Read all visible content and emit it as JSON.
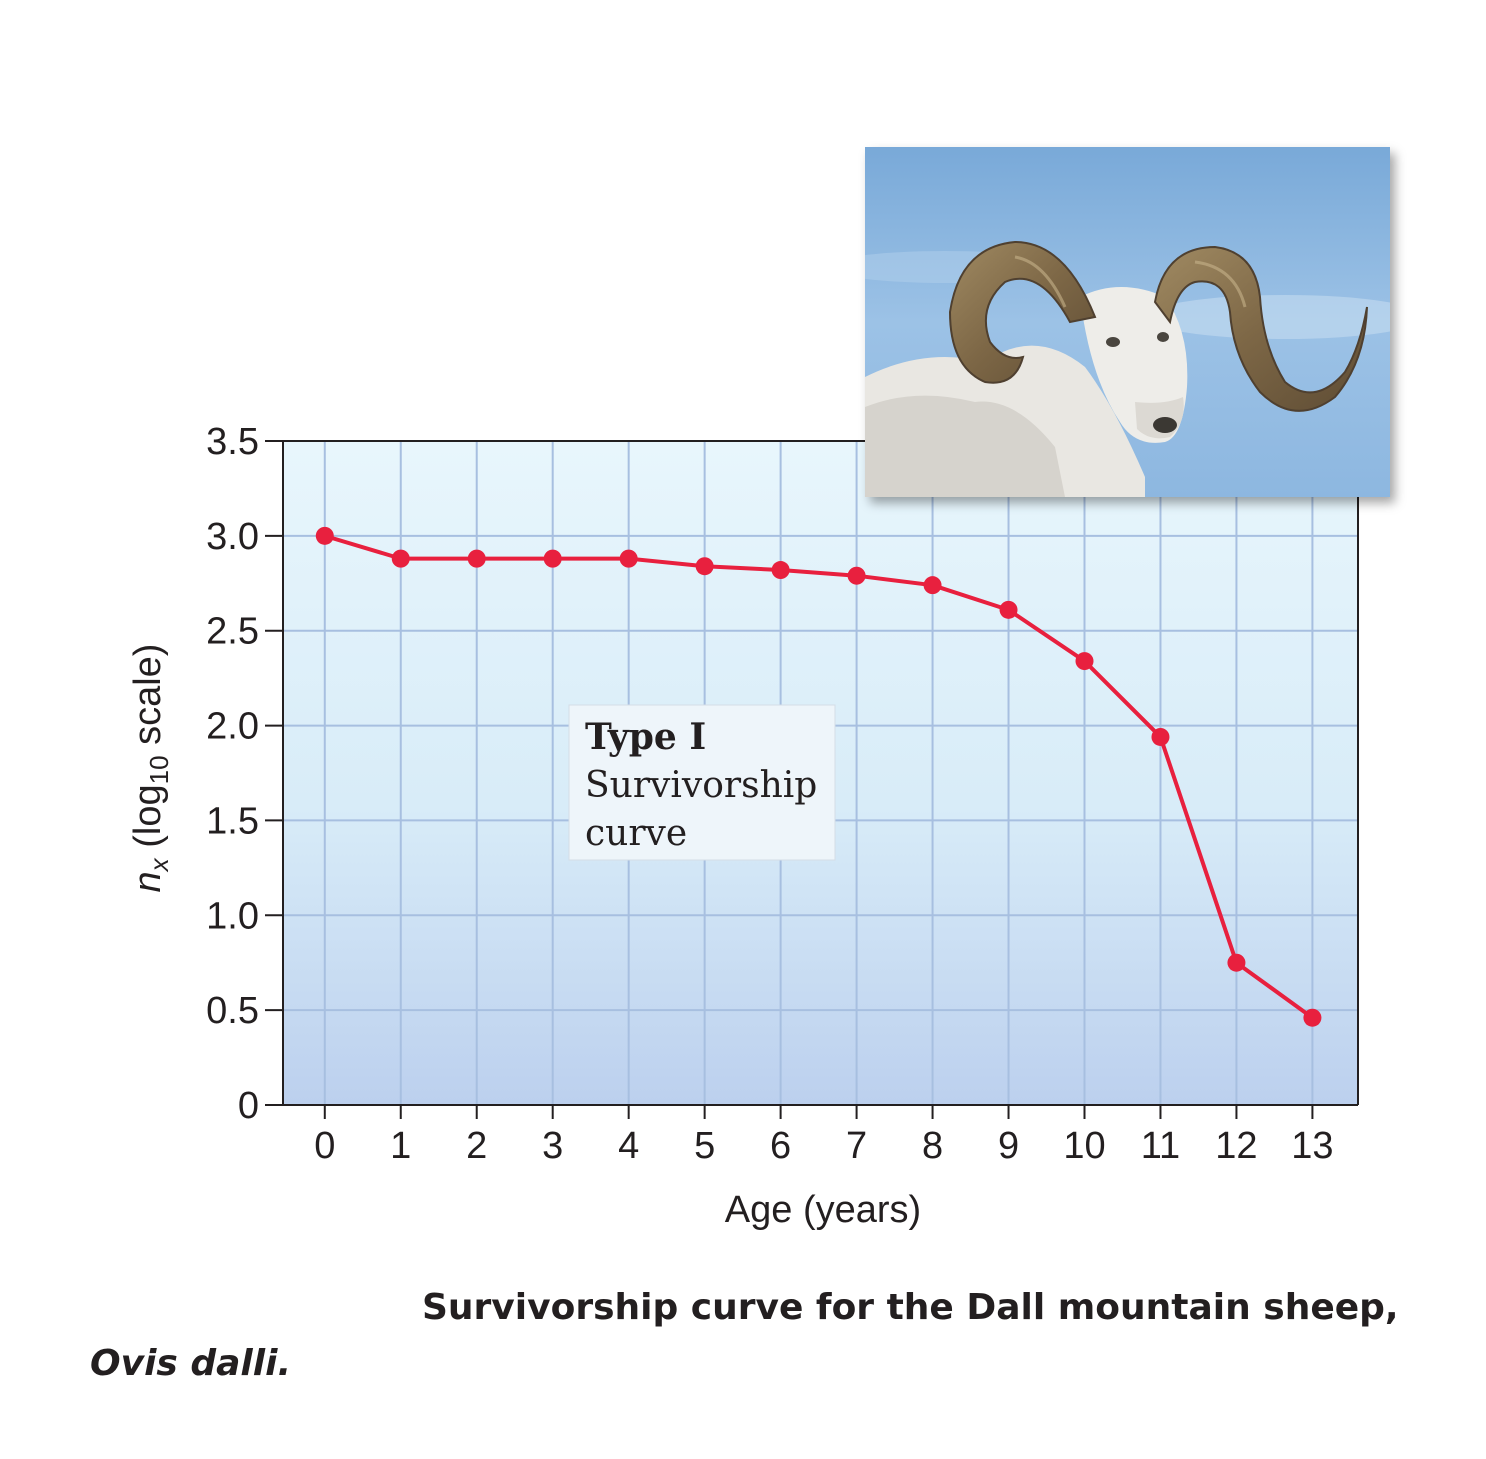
{
  "chart_data": {
    "type": "line",
    "title": "",
    "xlabel": "Age (years)",
    "ylabel_main": "n",
    "ylabel_sub": "x",
    "ylabel_scale_prefix": " (log",
    "ylabel_scale_base": "10",
    "ylabel_scale_suffix": " scale)",
    "x": [
      0,
      1,
      2,
      3,
      4,
      5,
      6,
      7,
      8,
      9,
      10,
      11,
      12,
      13
    ],
    "y": [
      3.0,
      2.88,
      2.88,
      2.88,
      2.88,
      2.84,
      2.82,
      2.79,
      2.74,
      2.61,
      2.34,
      1.94,
      0.75,
      0.46
    ],
    "xticks": [
      "0",
      "1",
      "2",
      "3",
      "4",
      "5",
      "6",
      "7",
      "8",
      "9",
      "10",
      "11",
      "12",
      "13"
    ],
    "yticks": [
      {
        "value": 0,
        "label": "0"
      },
      {
        "value": 0.5,
        "label": "0.5"
      },
      {
        "value": 1.0,
        "label": "1.0"
      },
      {
        "value": 1.5,
        "label": "1.5"
      },
      {
        "value": 2.0,
        "label": "2.0"
      },
      {
        "value": 2.5,
        "label": "2.5"
      },
      {
        "value": 3.0,
        "label": "3.0"
      },
      {
        "value": 3.5,
        "label": "3.5"
      }
    ],
    "xlim": [
      -0.55,
      13.6
    ],
    "ylim": [
      0,
      3.5
    ],
    "grid": true,
    "line_color": "#e8203e",
    "annotation": {
      "line1": "Type I",
      "line2": "Survivorship",
      "line3": "curve"
    }
  },
  "caption": {
    "text": "Survivorship curve for the Dall mountain sheep,",
    "species": "Ovis dalli."
  },
  "photo": {
    "icon": "dall-sheep-ram-photo",
    "sky_color": "#8cb4dc"
  }
}
